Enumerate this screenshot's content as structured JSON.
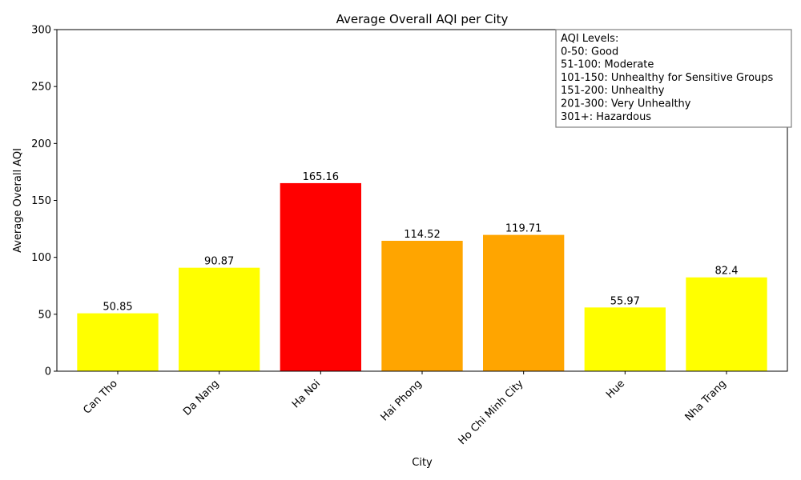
{
  "chart_data": {
    "type": "bar",
    "title": "Average Overall AQI per City",
    "xlabel": "City",
    "ylabel": "Average Overall AQI",
    "ylim": [
      0,
      300
    ],
    "yticks": [
      0,
      50,
      100,
      150,
      200,
      250,
      300
    ],
    "categories": [
      "Can Tho",
      "Da Nang",
      "Ha Noi",
      "Hai Phong",
      "Ho Chi Minh City",
      "Hue",
      "Nha Trang"
    ],
    "values": [
      50.85,
      90.87,
      165.16,
      114.52,
      119.71,
      55.97,
      82.4
    ],
    "value_labels": [
      "50.85",
      "90.87",
      "165.16",
      "114.52",
      "119.71",
      "55.97",
      "82.4"
    ],
    "bar_colors": [
      "#ffff00",
      "#ffff00",
      "#ff0000",
      "#ffa500",
      "#ffa500",
      "#ffff00",
      "#ffff00"
    ],
    "grid": false,
    "legend_placement": "top-right",
    "legend_lines": [
      "AQI Levels:",
      "0-50: Good",
      "51-100: Moderate",
      "101-150: Unhealthy for Sensitive Groups",
      "151-200: Unhealthy",
      "201-300: Very Unhealthy",
      "301+: Hazardous"
    ]
  }
}
